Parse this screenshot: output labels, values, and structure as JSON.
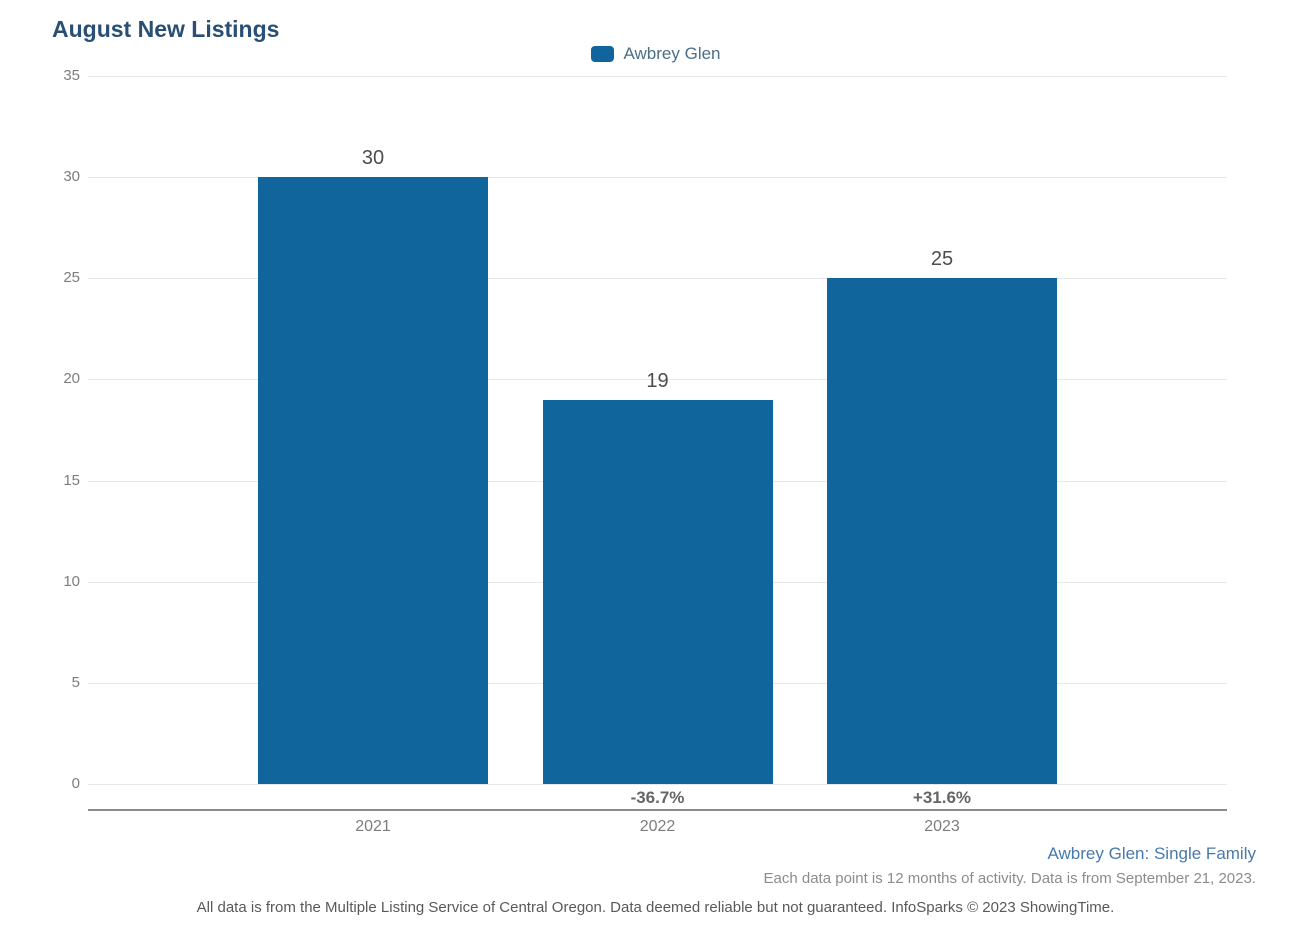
{
  "title": "August New Listings",
  "legend": {
    "label": "Awbrey Glen",
    "swatch_color": "#10669c"
  },
  "chart_data": {
    "type": "bar",
    "title": "August New Listings",
    "categories": [
      "2021",
      "2022",
      "2023"
    ],
    "values": [
      30,
      19,
      25
    ],
    "pct_change_labels": [
      "",
      "-36.7%",
      "+31.6%"
    ],
    "xlabel": "",
    "ylabel": "",
    "ylim": [
      0,
      35
    ],
    "yticks": [
      0,
      5,
      10,
      15,
      20,
      25,
      30,
      35
    ],
    "grid": true,
    "legend_position": "top-center",
    "legend_entries": [
      "Awbrey Glen"
    ],
    "bar_color": "#10669c"
  },
  "footer": {
    "series_note": "Awbrey Glen: Single Family",
    "data_note": "Each data point is 12 months of activity. Data is from September 21, 2023.",
    "disclaimer": "All data is from the Multiple Listing Service of Central Oregon. Data deemed reliable but not guaranteed. InfoSparks © 2023 ShowingTime."
  },
  "colors": {
    "title_text": "#2a4f74",
    "bar": "#10669c",
    "legend_text": "#4d6e87",
    "axis_line": "#8c8c8c",
    "gridline": "#e8e8e8",
    "tick_text": "#7d7d7d",
    "bar_label": "#4d4d4d",
    "pct_label": "#666666",
    "series_link": "#4879ad",
    "note_text": "#8c8c8c",
    "disclaimer_text": "#595959"
  }
}
